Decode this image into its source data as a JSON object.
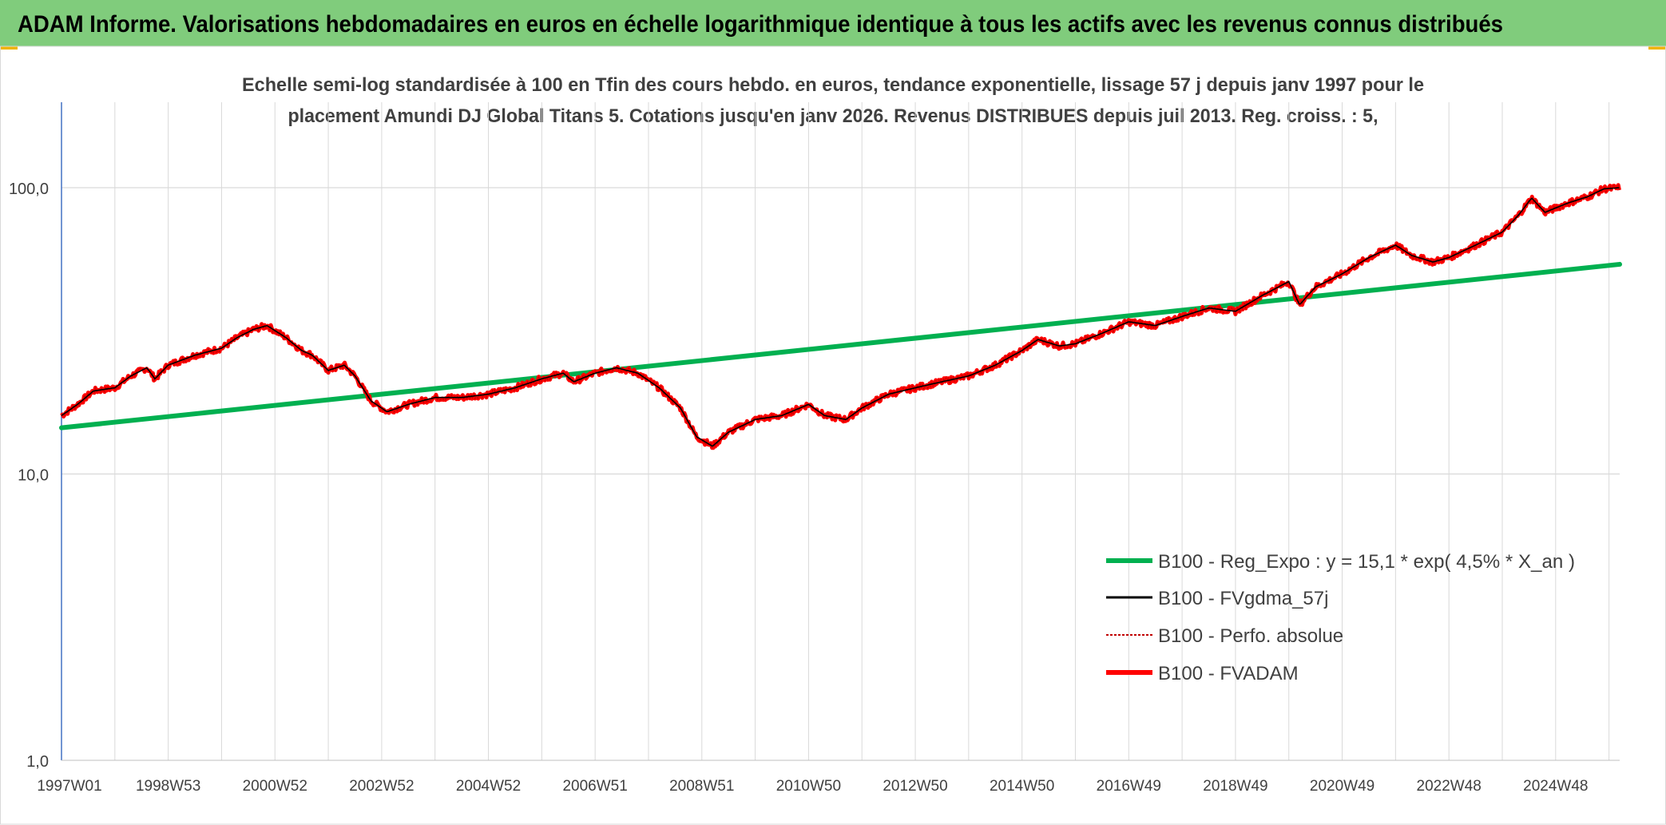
{
  "header": {
    "title": "ADAM Informe. Valorisations hebdomadaires en euros en échelle logarithmique identique à tous les actifs avec les revenus connus distribués"
  },
  "colors": {
    "header_bg": "#80cc7c",
    "trend": "#00b050",
    "smooth": "#000000",
    "perf": "#c00000",
    "adam": "#ff0000",
    "grid": "#d9d9d9",
    "axis": "#4472c4",
    "text": "#404040",
    "corner": "#f0b400"
  },
  "chart_data": {
    "type": "line",
    "title_lines": [
      "Echelle semi-log standardisée à 100 en Tfin des cours hebdo. en euros, tendance exponentielle, lissage 57 j depuis janv 1997 pour le",
      "placement Amundi DJ Global Titans 5. Cotations jusqu'en janv 2026. Revenus DISTRIBUES depuis juil 2013. Reg. croiss. : 5,"
    ],
    "y_scale": "log",
    "ylim": [
      1,
      100
    ],
    "y_ticks": [
      "1,0",
      "10,0",
      "100,0"
    ],
    "x_range": [
      1997.0,
      2026.2
    ],
    "x_tick_labels": [
      "1997W01",
      "1998W53",
      "2000W52",
      "2002W52",
      "2004W52",
      "2006W51",
      "2008W51",
      "2010W50",
      "2012W50",
      "2014W50",
      "2016W49",
      "2018W49",
      "2020W49",
      "2022W48",
      "2024W48"
    ],
    "x_tick_positions": [
      1997.0,
      1999.0,
      2001.0,
      2003.0,
      2005.0,
      2007.0,
      2009.0,
      2011.0,
      2013.0,
      2015.0,
      2017.0,
      2019.0,
      2021.0,
      2023.0,
      2025.0
    ],
    "grid": true,
    "legend_position": "bottom-right",
    "series": [
      {
        "name": "B100 - Reg_Expo : y = 15,1 * exp( 4,5% *  X_an )",
        "style": "trend",
        "x": [
          1997.0,
          2026.2
        ],
        "y": [
          14.5,
          54.0
        ]
      },
      {
        "name": "B100 - FVgdma_57j",
        "style": "smooth"
      },
      {
        "name": "B100 - Perfo. absolue",
        "style": "perf"
      },
      {
        "name": "B100 - FVADAM",
        "style": "adam",
        "x": [
          1997.0,
          1997.3,
          1997.6,
          1998.0,
          1998.3,
          1998.6,
          1998.75,
          1999.0,
          1999.5,
          2000.0,
          2000.3,
          2000.6,
          2000.85,
          2001.2,
          2001.5,
          2001.7,
          2002.0,
          2002.3,
          2002.5,
          2002.8,
          2003.1,
          2003.5,
          2004.0,
          2004.5,
          2005.0,
          2005.5,
          2006.0,
          2006.4,
          2006.6,
          2007.0,
          2007.4,
          2007.8,
          2008.2,
          2008.6,
          2008.9,
          2009.2,
          2009.5,
          2010.0,
          2010.5,
          2011.0,
          2011.3,
          2011.7,
          2012.0,
          2012.5,
          2013.0,
          2013.5,
          2014.0,
          2014.5,
          2015.0,
          2015.3,
          2015.7,
          2016.0,
          2016.5,
          2017.0,
          2017.5,
          2018.0,
          2018.5,
          2019.0,
          2019.5,
          2020.0,
          2020.2,
          2020.5,
          2021.0,
          2021.5,
          2022.0,
          2022.3,
          2022.7,
          2023.0,
          2023.5,
          2024.0,
          2024.3,
          2024.55,
          2024.8,
          2025.2,
          2025.6,
          2025.9,
          2026.2
        ],
        "y": [
          16.0,
          17.5,
          19.5,
          20.0,
          22.0,
          23.5,
          21.5,
          24.0,
          26.0,
          27.5,
          30.0,
          32.0,
          33.0,
          30.0,
          27.0,
          26.0,
          23.0,
          24.0,
          22.0,
          18.0,
          16.5,
          17.5,
          18.5,
          18.5,
          19.0,
          20.0,
          21.5,
          22.5,
          21.0,
          22.5,
          23.5,
          22.5,
          20.0,
          17.0,
          13.5,
          12.5,
          14.0,
          15.5,
          16.0,
          17.5,
          16.0,
          15.5,
          17.0,
          19.0,
          20.0,
          21.0,
          22.0,
          24.0,
          27.0,
          29.5,
          28.0,
          28.5,
          31.0,
          34.0,
          33.0,
          35.5,
          38.0,
          37.0,
          42.0,
          47.0,
          39.0,
          45.0,
          50.0,
          57.0,
          63.0,
          58.0,
          55.0,
          57.0,
          63.0,
          70.0,
          80.0,
          92.0,
          82.0,
          88.0,
          93.0,
          99.0,
          100.0
        ]
      }
    ]
  }
}
